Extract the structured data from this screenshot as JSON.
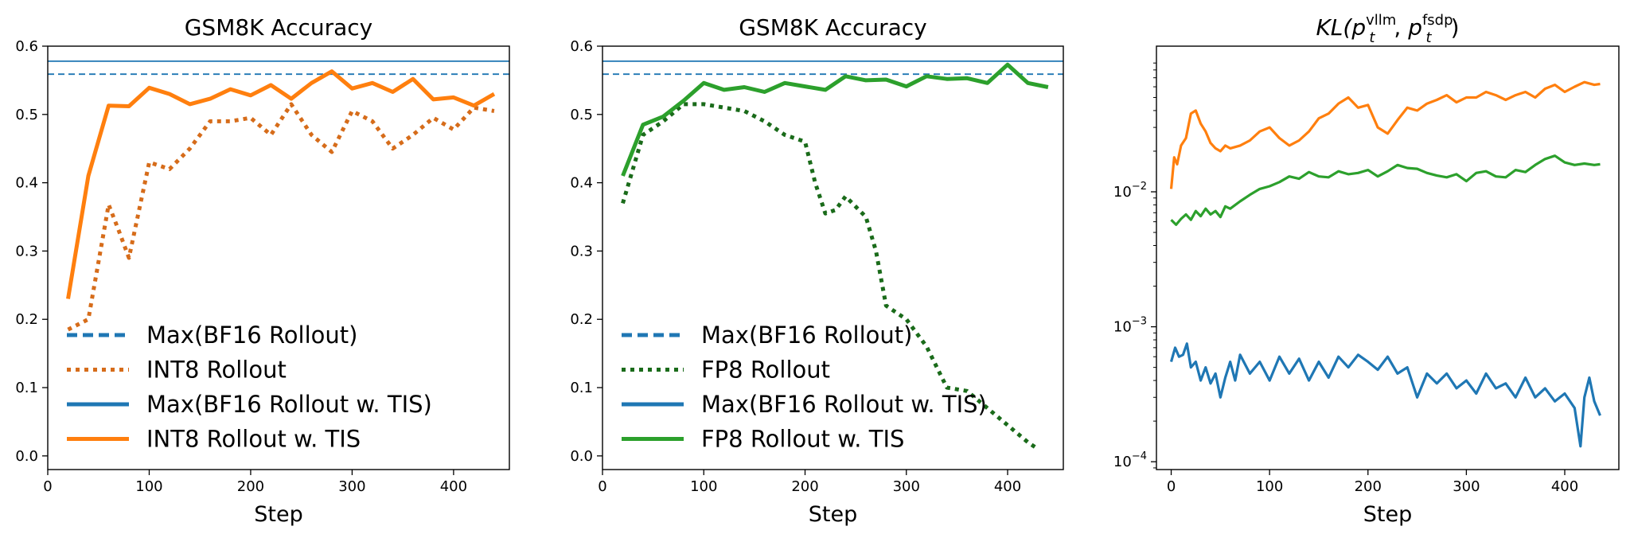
{
  "chart_data": [
    {
      "type": "line",
      "title": "GSM8K Accuracy",
      "xlabel": "Step",
      "ylabel": "",
      "xlim": [
        0,
        455
      ],
      "ylim": [
        -0.02,
        0.6
      ],
      "xticks": [
        "0",
        "100",
        "200",
        "300",
        "400"
      ],
      "yticks": [
        "0.0",
        "0.1",
        "0.2",
        "0.3",
        "0.4",
        "0.5",
        "0.6"
      ],
      "legend_position": "lower-left",
      "hlines": [
        {
          "name": "Max(BF16 Rollout)",
          "y": 0.559,
          "style": "dashed",
          "color": "#1f77b4"
        },
        {
          "name": "Max(BF16 Rollout w. TIS)",
          "y": 0.578,
          "style": "solid",
          "color": "#1f77b4"
        }
      ],
      "series": [
        {
          "name": "INT8 Rollout",
          "style": "dotted",
          "color": "#d66c1a",
          "x": [
            20,
            40,
            60,
            70,
            80,
            100,
            120,
            140,
            160,
            180,
            200,
            220,
            240,
            260,
            280,
            300,
            320,
            340,
            360,
            380,
            400,
            420,
            440
          ],
          "values": [
            0.185,
            0.2,
            0.368,
            0.33,
            0.29,
            0.43,
            0.42,
            0.45,
            0.49,
            0.49,
            0.495,
            0.47,
            0.515,
            0.47,
            0.445,
            0.505,
            0.49,
            0.45,
            0.47,
            0.495,
            0.478,
            0.51,
            0.505
          ]
        },
        {
          "name": "INT8 Rollout w. TIS",
          "style": "solid",
          "color": "#ff7f0e",
          "x": [
            20,
            40,
            60,
            80,
            100,
            120,
            140,
            160,
            180,
            200,
            220,
            240,
            260,
            280,
            300,
            320,
            340,
            360,
            380,
            400,
            420,
            440
          ],
          "values": [
            0.23,
            0.41,
            0.513,
            0.512,
            0.539,
            0.53,
            0.515,
            0.523,
            0.537,
            0.528,
            0.543,
            0.523,
            0.546,
            0.563,
            0.538,
            0.546,
            0.533,
            0.552,
            0.522,
            0.525,
            0.513,
            0.53
          ]
        }
      ]
    },
    {
      "type": "line",
      "title": "GSM8K Accuracy",
      "xlabel": "Step",
      "ylabel": "",
      "xlim": [
        0,
        455
      ],
      "ylim": [
        -0.02,
        0.6
      ],
      "xticks": [
        "0",
        "100",
        "200",
        "300",
        "400"
      ],
      "yticks": [
        "0.0",
        "0.1",
        "0.2",
        "0.3",
        "0.4",
        "0.5",
        "0.6"
      ],
      "legend_position": "lower-left",
      "hlines": [
        {
          "name": "Max(BF16 Rollout)",
          "y": 0.559,
          "style": "dashed",
          "color": "#1f77b4"
        },
        {
          "name": "Max(BF16 Rollout w. TIS)",
          "y": 0.578,
          "style": "solid",
          "color": "#1f77b4"
        }
      ],
      "series": [
        {
          "name": "FP8 Rollout",
          "style": "dotted",
          "color": "#1a6b1a",
          "x": [
            20,
            40,
            60,
            80,
            100,
            120,
            140,
            160,
            180,
            200,
            210,
            220,
            230,
            240,
            260,
            270,
            280,
            300,
            320,
            340,
            360,
            380,
            400,
            420,
            430
          ],
          "values": [
            0.37,
            0.47,
            0.49,
            0.515,
            0.515,
            0.51,
            0.505,
            0.49,
            0.47,
            0.46,
            0.4,
            0.355,
            0.36,
            0.38,
            0.35,
            0.3,
            0.22,
            0.2,
            0.16,
            0.1,
            0.095,
            0.07,
            0.045,
            0.02,
            0.01
          ]
        },
        {
          "name": "FP8 Rollout w. TIS",
          "style": "solid",
          "color": "#2ca02c",
          "x": [
            20,
            40,
            60,
            80,
            100,
            120,
            140,
            160,
            180,
            200,
            220,
            240,
            260,
            280,
            300,
            320,
            340,
            360,
            380,
            400,
            420,
            440
          ],
          "values": [
            0.41,
            0.485,
            0.497,
            0.52,
            0.546,
            0.536,
            0.54,
            0.533,
            0.546,
            0.541,
            0.536,
            0.556,
            0.55,
            0.551,
            0.541,
            0.556,
            0.552,
            0.553,
            0.546,
            0.573,
            0.546,
            0.54
          ]
        }
      ]
    },
    {
      "type": "line",
      "title": "KL(p_t^vllm, p_t^fsdp)",
      "title_parts": {
        "base": "KL(",
        "p": "p",
        "sub": "t",
        "sup1": "vllm",
        "sep": ", ",
        "sup2": "fsdp",
        "close": ")"
      },
      "xlabel": "Step",
      "ylabel": "",
      "xlim": [
        -15,
        455
      ],
      "ylim": [
        8.75e-05,
        0.12
      ],
      "yscale": "log",
      "xticks": [
        "0",
        "100",
        "200",
        "300",
        "400"
      ],
      "yticks": [
        {
          "base": "10",
          "exp": "−2",
          "value": 0.01
        },
        {
          "base": "10",
          "exp": "−3",
          "value": 0.001
        },
        {
          "base": "10",
          "exp": "−4",
          "value": 0.0001
        }
      ],
      "series": [
        {
          "name": "orange",
          "style": "solid",
          "color": "#ff7f0e",
          "x": [
            0,
            3,
            6,
            10,
            15,
            20,
            25,
            30,
            35,
            40,
            45,
            50,
            55,
            60,
            70,
            80,
            90,
            100,
            110,
            120,
            130,
            140,
            150,
            160,
            170,
            180,
            190,
            200,
            210,
            220,
            230,
            240,
            250,
            260,
            270,
            280,
            290,
            300,
            310,
            320,
            330,
            340,
            350,
            360,
            370,
            380,
            390,
            400,
            410,
            420,
            430,
            436
          ],
          "values": [
            0.0105,
            0.018,
            0.016,
            0.022,
            0.025,
            0.038,
            0.04,
            0.032,
            0.028,
            0.023,
            0.021,
            0.02,
            0.022,
            0.021,
            0.022,
            0.024,
            0.028,
            0.03,
            0.025,
            0.022,
            0.024,
            0.028,
            0.035,
            0.038,
            0.045,
            0.05,
            0.042,
            0.044,
            0.03,
            0.027,
            0.034,
            0.042,
            0.04,
            0.045,
            0.048,
            0.052,
            0.046,
            0.05,
            0.05,
            0.055,
            0.052,
            0.048,
            0.052,
            0.055,
            0.05,
            0.058,
            0.062,
            0.055,
            0.06,
            0.065,
            0.062,
            0.063
          ]
        },
        {
          "name": "green",
          "style": "solid",
          "color": "#2ca02c",
          "x": [
            0,
            5,
            10,
            15,
            20,
            25,
            30,
            35,
            40,
            45,
            50,
            55,
            60,
            70,
            80,
            90,
            100,
            110,
            120,
            130,
            140,
            150,
            160,
            170,
            180,
            190,
            200,
            210,
            220,
            230,
            240,
            250,
            260,
            270,
            280,
            290,
            300,
            310,
            320,
            330,
            340,
            350,
            360,
            370,
            380,
            390,
            400,
            410,
            420,
            430,
            436
          ],
          "values": [
            0.0062,
            0.0057,
            0.0063,
            0.0068,
            0.0062,
            0.0072,
            0.0066,
            0.0075,
            0.0068,
            0.0072,
            0.0065,
            0.0078,
            0.0075,
            0.0085,
            0.0095,
            0.0105,
            0.011,
            0.0118,
            0.013,
            0.0125,
            0.014,
            0.013,
            0.0128,
            0.0142,
            0.0135,
            0.0138,
            0.0145,
            0.013,
            0.0142,
            0.0158,
            0.015,
            0.0148,
            0.0138,
            0.0132,
            0.0128,
            0.0135,
            0.012,
            0.0138,
            0.0142,
            0.013,
            0.0128,
            0.0145,
            0.014,
            0.0158,
            0.0175,
            0.0185,
            0.0165,
            0.0158,
            0.0162,
            0.0158,
            0.016
          ]
        },
        {
          "name": "blue",
          "style": "solid",
          "color": "#1f77b4",
          "x": [
            0,
            4,
            8,
            12,
            16,
            20,
            25,
            30,
            35,
            40,
            45,
            50,
            55,
            60,
            65,
            70,
            80,
            90,
            100,
            110,
            120,
            130,
            140,
            150,
            160,
            170,
            180,
            190,
            200,
            210,
            220,
            230,
            240,
            250,
            260,
            270,
            280,
            290,
            300,
            310,
            320,
            330,
            340,
            350,
            360,
            370,
            380,
            390,
            400,
            410,
            416,
            420,
            425,
            430,
            436
          ],
          "values": [
            0.00055,
            0.0007,
            0.0006,
            0.00062,
            0.00075,
            0.0005,
            0.00055,
            0.0004,
            0.0005,
            0.00038,
            0.00045,
            0.0003,
            0.00042,
            0.00055,
            0.0004,
            0.00062,
            0.00045,
            0.00055,
            0.0004,
            0.0006,
            0.00045,
            0.00058,
            0.0004,
            0.00055,
            0.00042,
            0.0006,
            0.0005,
            0.00062,
            0.00055,
            0.00048,
            0.0006,
            0.00045,
            0.0005,
            0.0003,
            0.00045,
            0.00038,
            0.00045,
            0.00035,
            0.0004,
            0.00032,
            0.00045,
            0.00035,
            0.00038,
            0.0003,
            0.00042,
            0.0003,
            0.00035,
            0.00028,
            0.00032,
            0.00025,
            0.00013,
            0.0003,
            0.00042,
            0.00028,
            0.00022
          ]
        }
      ]
    }
  ]
}
